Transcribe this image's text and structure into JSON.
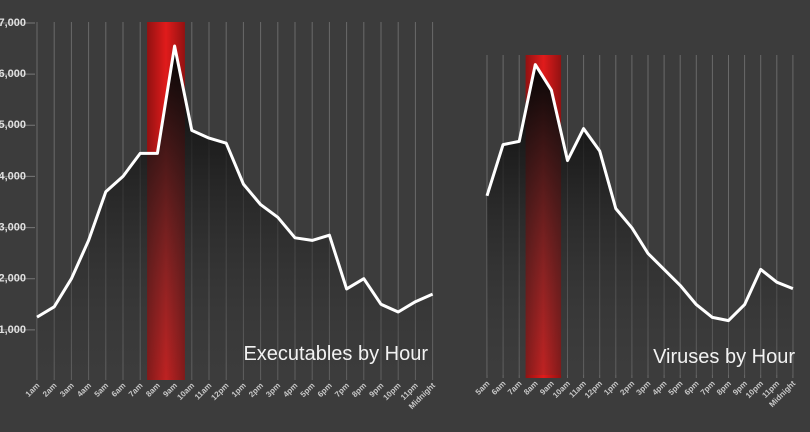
{
  "chart_data": [
    {
      "type": "area",
      "title": "Executables by Hour",
      "categories": [
        "1am",
        "2am",
        "3am",
        "4am",
        "5am",
        "6am",
        "7am",
        "8am",
        "9am",
        "10am",
        "11am",
        "12pm",
        "1pm",
        "2pm",
        "3pm",
        "4pm",
        "5pm",
        "6pm",
        "7pm",
        "8pm",
        "9pm",
        "10pm",
        "11pm",
        "Midnight"
      ],
      "values": [
        1250,
        1450,
        2000,
        2750,
        3700,
        4000,
        4450,
        4450,
        6550,
        4900,
        4750,
        4650,
        3850,
        3450,
        3200,
        2800,
        2750,
        2850,
        1800,
        2000,
        1500,
        1350,
        1550,
        1700
      ],
      "color": "#ffffff",
      "highlight_color": "#e01b1b",
      "highlight_categories": [
        "8am",
        "9am"
      ],
      "ylim": [
        0,
        7000
      ],
      "yticks": [
        {
          "value": 1000,
          "label": "1,000"
        },
        {
          "value": 2000,
          "label": "2,000"
        },
        {
          "value": 3000,
          "label": "3,000"
        },
        {
          "value": 4000,
          "label": "4,000"
        },
        {
          "value": 5000,
          "label": "5,000"
        },
        {
          "value": 6000,
          "label": "6,000"
        },
        {
          "value": 7000,
          "label": "7,000"
        }
      ]
    },
    {
      "type": "area",
      "title": "Viruses by Hour",
      "categories": [
        "5am",
        "6am",
        "7am",
        "8am",
        "9am",
        "10am",
        "11am",
        "12pm",
        "1pm",
        "2pm",
        "3pm",
        "4pm",
        "5pm",
        "6pm",
        "7pm",
        "8pm",
        "9pm",
        "10pm",
        "11pm",
        "Midnight"
      ],
      "values": [
        56,
        72,
        73,
        97,
        89,
        67,
        77,
        70,
        52,
        46,
        38,
        33,
        28,
        22,
        18,
        17,
        22,
        33,
        29,
        27
      ],
      "color": "#ffffff",
      "highlight_color": "#e01b1b",
      "highlight_categories": [
        "8am",
        "9am"
      ],
      "ylim": [
        0,
        100
      ]
    }
  ]
}
